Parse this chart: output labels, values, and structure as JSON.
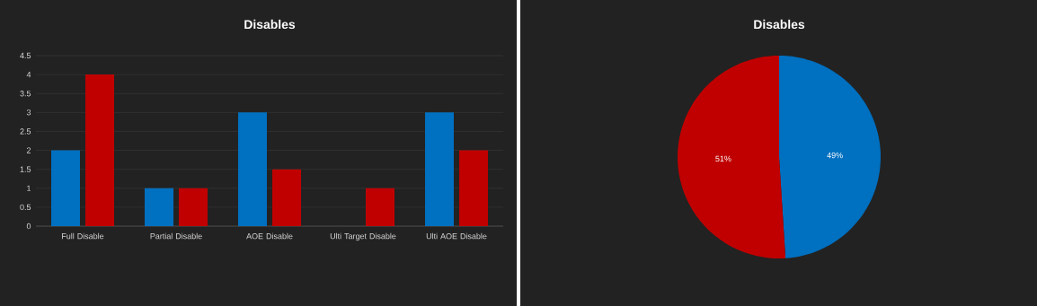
{
  "chart_data": [
    {
      "type": "bar",
      "title": "Disables",
      "categories": [
        "Full Disable",
        "Partial Disable",
        "AOE Disable",
        "Ulti Target Disable",
        "Ulti AOE Disable"
      ],
      "series": [
        {
          "color": "#0070c0",
          "values": [
            2,
            1,
            3,
            0,
            3
          ]
        },
        {
          "color": "#c00000",
          "values": [
            4,
            1,
            1.5,
            1,
            2
          ]
        }
      ],
      "ylim": [
        0,
        4.5
      ],
      "yticks": [
        0,
        0.5,
        1,
        1.5,
        2,
        2.5,
        3,
        3.5,
        4,
        4.5
      ],
      "grid": "y"
    },
    {
      "type": "pie",
      "title": "Disables",
      "categories": [
        null,
        null
      ],
      "values": [
        49,
        51
      ],
      "colors": [
        "#0070c0",
        "#c00000"
      ],
      "value_labels": [
        "49%",
        "51%"
      ]
    }
  ]
}
